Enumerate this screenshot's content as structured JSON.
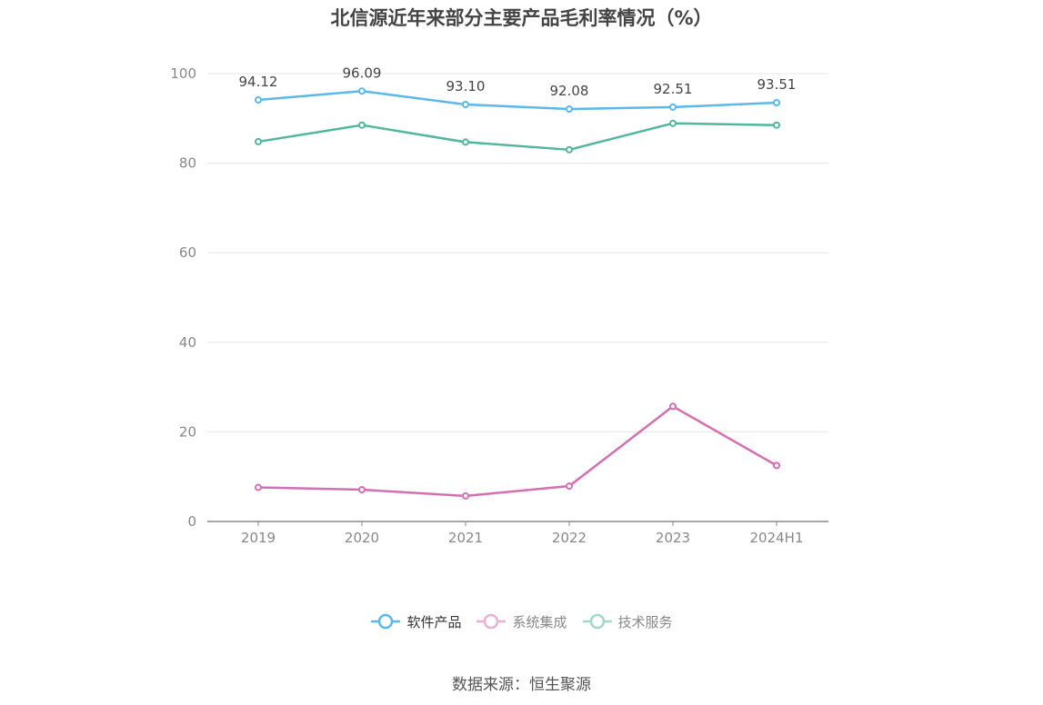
{
  "title": "北信源近年来部分主要产品毛利率情况（%）",
  "source": "数据来源：恒生聚源",
  "chart_data": {
    "type": "line",
    "title": "北信源近年来部分主要产品毛利率情况（%）",
    "categories": [
      "2019",
      "2020",
      "2021",
      "2022",
      "2023",
      "2024H1"
    ],
    "ylim": [
      0,
      100
    ],
    "yticks": [
      0,
      20,
      40,
      60,
      80,
      100
    ],
    "grid": true,
    "legend_position": "bottom",
    "series": [
      {
        "name": "软件产品",
        "color": "#5ab8ec",
        "values": [
          94.12,
          96.09,
          93.1,
          92.08,
          92.51,
          93.51
        ],
        "labels": [
          "94.12",
          "96.09",
          "93.10",
          "92.08",
          "92.51",
          "93.51"
        ],
        "show_labels": true,
        "active": true
      },
      {
        "name": "系统集成",
        "color": "#d56fb2",
        "values": [
          7.6,
          7.1,
          5.7,
          7.9,
          25.7,
          12.5
        ],
        "show_labels": false,
        "active": false
      },
      {
        "name": "技术服务",
        "color": "#4fb89c",
        "values": [
          84.8,
          88.5,
          84.7,
          83.0,
          88.9,
          88.5
        ],
        "show_labels": false,
        "active": false
      }
    ]
  },
  "legend_colors": {
    "软件产品": "#5ab8ec",
    "系统集成": "#e8b0d6",
    "技术服务": "#9fd9c8"
  }
}
